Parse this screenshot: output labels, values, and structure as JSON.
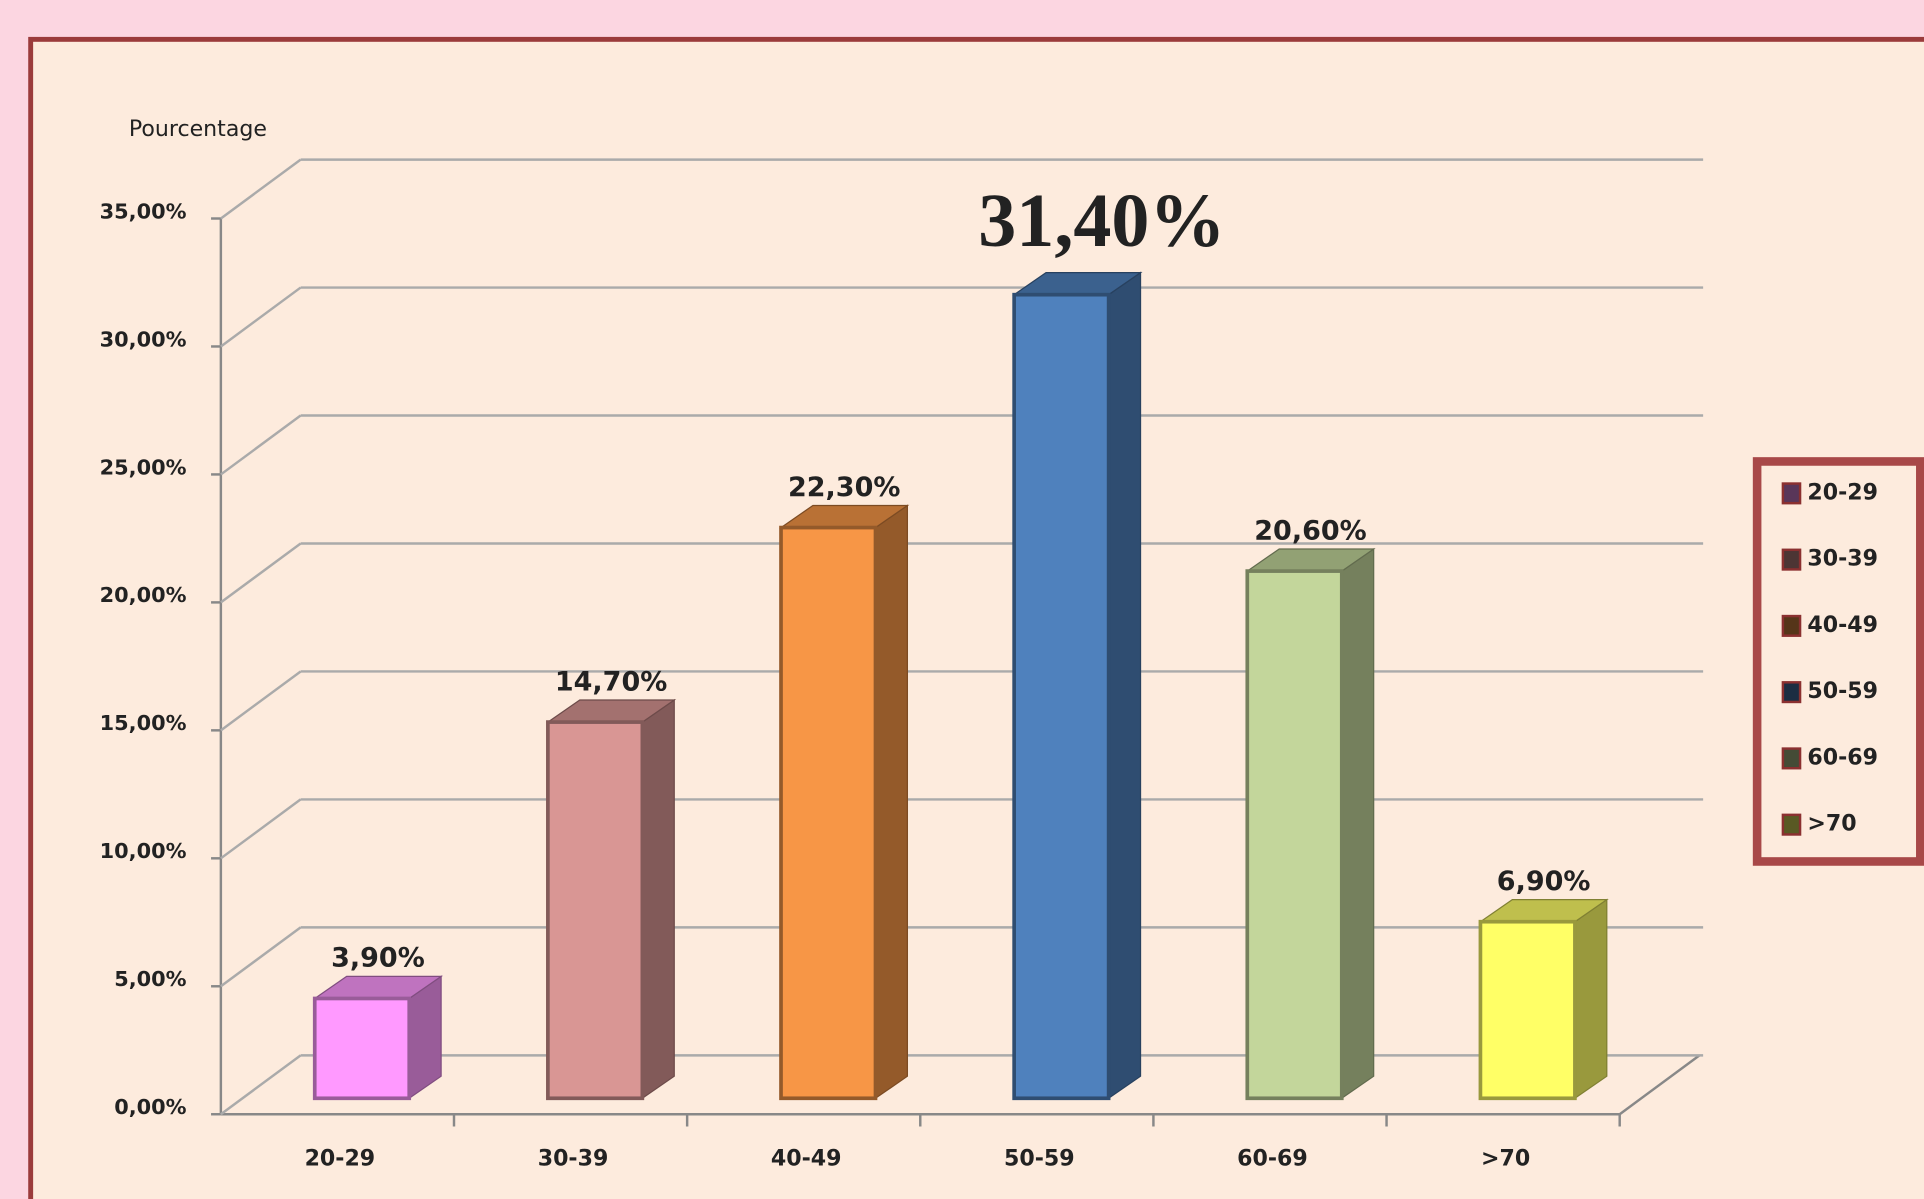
{
  "chart_data": {
    "type": "bar3d",
    "y_axis_label": "Pourcentage",
    "categories": [
      "20-29",
      "30-39",
      "40-49",
      "50-59",
      "60-69",
      ">70"
    ],
    "values": [
      3.9,
      14.7,
      22.3,
      31.4,
      20.6,
      6.9
    ],
    "value_labels": [
      "3,90%",
      "14,70%",
      "22,30%",
      "31,40%",
      "20,60%",
      "6,90%"
    ],
    "colors": [
      "#ff99ff",
      "#d99694",
      "#f79646",
      "#4f81bd",
      "#c3d69b",
      "#ffff66"
    ],
    "ylim": [
      0,
      35
    ],
    "yticks": [
      {
        "value": 0,
        "label": "0,00%"
      },
      {
        "value": 5,
        "label": "5,00%"
      },
      {
        "value": 10,
        "label": "10,00%"
      },
      {
        "value": 15,
        "label": "15,00%"
      },
      {
        "value": 20,
        "label": "20,00%"
      },
      {
        "value": 25,
        "label": "25,00%"
      },
      {
        "value": 30,
        "label": "30,00%"
      },
      {
        "value": 35,
        "label": "35,00%"
      }
    ],
    "grid": true,
    "legend": "right"
  }
}
